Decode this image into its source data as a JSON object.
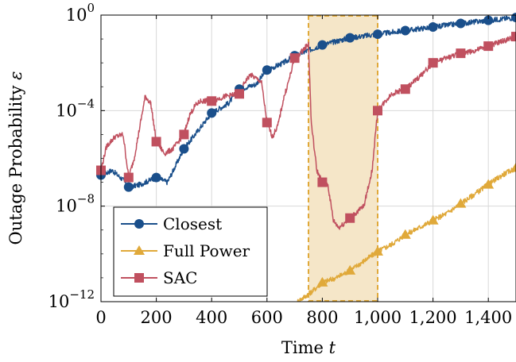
{
  "chart_data": {
    "type": "line",
    "xlabel": "Time",
    "xlabel_var": "t",
    "ylabel": "Outage Probability",
    "ylabel_var": "ε",
    "xlim": [
      0,
      1500
    ],
    "ylim_log10": [
      -12,
      0
    ],
    "y_scale": "log",
    "grid": true,
    "x_ticks": [
      0,
      200,
      400,
      600,
      800,
      1000,
      1200,
      1400
    ],
    "x_tick_labels": [
      "0",
      "200",
      "400",
      "600",
      "800",
      "1,000",
      "1,200",
      "1,400"
    ],
    "y_ticks_log10": [
      -12,
      -8,
      -4,
      0
    ],
    "y_tick_bases": [
      "10",
      "10",
      "10",
      "10"
    ],
    "y_tick_exps": [
      "−12",
      "−8",
      "−4",
      "0"
    ],
    "highlight_region": {
      "x": [
        750,
        1000
      ],
      "color": "#f5e6c8",
      "border_color": "#e0a93a"
    },
    "legend_position": "bottom-left",
    "series": [
      {
        "name": "Closest",
        "color": "#1a4f8b",
        "marker": "circle",
        "x": [
          0,
          40,
          80,
          100,
          140,
          180,
          200,
          240,
          300,
          340,
          400,
          460,
          500,
          560,
          600,
          660,
          700,
          800,
          900,
          1000,
          1100,
          1200,
          1300,
          1400,
          1500
        ],
        "y_log10": [
          -6.7,
          -6.5,
          -6.9,
          -7.2,
          -7.1,
          -6.9,
          -6.8,
          -7.0,
          -5.6,
          -5.0,
          -4.1,
          -3.7,
          -3.1,
          -2.9,
          -2.3,
          -2.0,
          -1.7,
          -1.25,
          -0.95,
          -0.8,
          -0.65,
          -0.5,
          -0.35,
          -0.22,
          -0.1
        ],
        "markers_at": [
          0,
          100,
          200,
          300,
          400,
          500,
          600,
          700,
          800,
          900,
          1000,
          1100,
          1200,
          1300,
          1400,
          1500
        ]
      },
      {
        "name": "Full Power",
        "color": "#e0a93a",
        "marker": "triangle",
        "x": [
          710,
          760,
          800,
          850,
          900,
          950,
          1000,
          1050,
          1100,
          1150,
          1200,
          1250,
          1300,
          1350,
          1400,
          1450,
          1500
        ],
        "y_log10": [
          -12.0,
          -11.6,
          -11.2,
          -11.0,
          -10.7,
          -10.3,
          -9.9,
          -9.6,
          -9.2,
          -8.9,
          -8.6,
          -8.3,
          -7.9,
          -7.5,
          -7.1,
          -6.7,
          -6.4
        ],
        "markers_at": [
          800,
          900,
          1000,
          1100,
          1200,
          1300,
          1400,
          1500
        ]
      },
      {
        "name": "SAC",
        "color": "#c0505f",
        "marker": "square",
        "x": [
          0,
          20,
          50,
          80,
          100,
          120,
          160,
          180,
          200,
          230,
          260,
          300,
          320,
          340,
          360,
          400,
          450,
          500,
          520,
          540,
          580,
          600,
          620,
          640,
          660,
          680,
          700,
          720,
          750,
          760,
          780,
          800,
          820,
          840,
          860,
          900,
          950,
          980,
          1000,
          1050,
          1100,
          1150,
          1200,
          1250,
          1300,
          1350,
          1400,
          1450,
          1500
        ],
        "y_log10": [
          -6.5,
          -5.5,
          -5.1,
          -5.0,
          -6.8,
          -6.0,
          -3.4,
          -3.7,
          -5.3,
          -5.8,
          -5.6,
          -5.0,
          -4.2,
          -3.8,
          -3.6,
          -3.6,
          -3.4,
          -3.3,
          -2.8,
          -2.5,
          -2.8,
          -4.5,
          -5.1,
          -4.6,
          -3.5,
          -2.7,
          -1.8,
          -1.6,
          -1.2,
          -4.5,
          -6.5,
          -7.0,
          -7.1,
          -8.6,
          -8.9,
          -8.5,
          -8.0,
          -6.5,
          -4.0,
          -3.3,
          -3.1,
          -2.6,
          -2.0,
          -1.8,
          -1.6,
          -1.5,
          -1.3,
          -1.1,
          -0.9
        ],
        "markers_at": [
          0,
          100,
          200,
          300,
          400,
          500,
          600,
          700,
          800,
          900,
          1000,
          1100,
          1200,
          1300,
          1400,
          1500
        ]
      }
    ]
  }
}
